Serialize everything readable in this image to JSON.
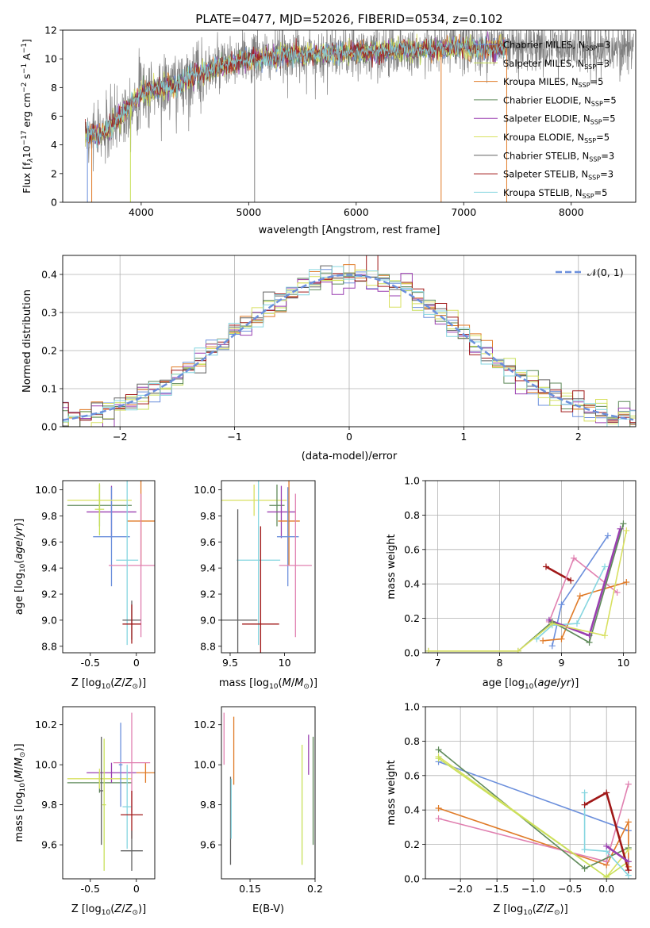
{
  "figure": {
    "title": "PLATE=0477, MJD=52026, FIBERID=0534, z=0.102"
  },
  "colors": {
    "Chabrier MILES": "#6b8fdc",
    "Salpeter MILES": "#c8e05a",
    "Kroupa MILES": "#e07b28",
    "Chabrier ELODIE": "#5f8a5a",
    "Salpeter ELODIE": "#9a3fb0",
    "Kroupa ELODIE": "#d8e060",
    "Chabrier STELIB": "#606060",
    "Salpeter STELIB": "#a01818",
    "Kroupa STELIB": "#86d6e0",
    "Pink": "#e080b0"
  },
  "chart_data": [
    {
      "id": "spectrum",
      "type": "line",
      "xlabel": "wavelength [Angstrom, rest frame]",
      "ylabel": "Flux [f$_\\lambda$10$^{-17}$ erg cm$^{-2}$ s$^{-1}$ A$^{-1}$]",
      "ylabel_parts": [
        "Flux [f",
        "λ",
        "10",
        "−17",
        " erg cm",
        "−2",
        " s",
        "−1",
        " A",
        "−1",
        "]"
      ],
      "xlim": [
        3270,
        8600
      ],
      "ylim": [
        0,
        12
      ],
      "xticks": [
        4000,
        5000,
        6000,
        7000,
        8000
      ],
      "yticks": [
        0,
        2,
        4,
        6,
        8,
        10,
        12
      ],
      "legend_placement": "right",
      "legend": [
        {
          "name": "Chabrier MILES",
          "nssp": "3"
        },
        {
          "name": "Salpeter MILES",
          "nssp": "3"
        },
        {
          "name": "Kroupa MILES",
          "nssp": "5"
        },
        {
          "name": "Chabrier ELODIE",
          "nssp": "5"
        },
        {
          "name": "Salpeter ELODIE",
          "nssp": "5"
        },
        {
          "name": "Kroupa ELODIE",
          "nssp": "5"
        },
        {
          "name": "Chabrier STELIB",
          "nssp": "3"
        },
        {
          "name": "Salpeter STELIB",
          "nssp": "3"
        },
        {
          "name": "Kroupa STELIB",
          "nssp": "5"
        }
      ],
      "nssp_label": "N",
      "nssp_sub": "SSP",
      "continuum": [
        [
          3480,
          4.8
        ],
        [
          3600,
          4.6
        ],
        [
          3700,
          5.1
        ],
        [
          3800,
          6.0
        ],
        [
          3900,
          6.8
        ],
        [
          4000,
          7.6
        ],
        [
          4100,
          7.8
        ],
        [
          4200,
          8.0
        ],
        [
          4300,
          8.1
        ],
        [
          4400,
          8.5
        ],
        [
          4500,
          8.9
        ],
        [
          4600,
          9.1
        ],
        [
          4700,
          9.4
        ],
        [
          4800,
          9.6
        ],
        [
          4900,
          9.8
        ],
        [
          5000,
          10.0
        ],
        [
          5200,
          10.1
        ],
        [
          5400,
          10.3
        ],
        [
          5600,
          10.3
        ],
        [
          5800,
          10.4
        ],
        [
          6000,
          10.4
        ],
        [
          6200,
          10.5
        ],
        [
          6400,
          10.6
        ],
        [
          6600,
          10.6
        ],
        [
          6800,
          10.7
        ],
        [
          7000,
          10.8
        ],
        [
          7200,
          10.7
        ],
        [
          7400,
          10.8
        ]
      ],
      "model_visible_range": [
        3480,
        7400
      ],
      "data_range": [
        3480,
        8580
      ],
      "data_scatter_level": 1.0,
      "sharp_dips_x": [
        3500,
        3540,
        3900,
        5055,
        6790,
        7400
      ]
    },
    {
      "id": "residuals",
      "type": "histogram",
      "xlabel": "(data-model)/error",
      "ylabel": "Normed distribution",
      "xlim": [
        -2.5,
        2.5
      ],
      "ylim": [
        0,
        0.45
      ],
      "xticks": [
        -2,
        -1,
        0,
        1,
        2
      ],
      "yticks": [
        0.0,
        0.1,
        0.2,
        0.3,
        0.4
      ],
      "grid": true,
      "legend_placement": "top-right",
      "legend": [
        {
          "name": "𝒩(0, 1)",
          "style": "dashed"
        }
      ],
      "bin_width": 0.1
    },
    {
      "id": "age-vs-Z",
      "type": "scatter",
      "xlabel": "Z [log10(Z/Z⊙)]",
      "ylabel": "age  [log10(age/yr)]",
      "xlim": [
        -0.8,
        0.2
      ],
      "ylim": [
        8.75,
        10.07
      ],
      "xticks": [
        -0.5,
        0.0
      ],
      "yticks": [
        8.8,
        9.0,
        9.2,
        9.4,
        9.6,
        9.8,
        10.0
      ],
      "errorbars": [
        {
          "series": "Chabrier ELODIE",
          "x": -0.4,
          "xerr": 0.35,
          "y": 9.88,
          "yerr": 0.16
        },
        {
          "series": "Salpeter ELODIE",
          "x": -0.27,
          "xerr": 0.27,
          "y": 9.83,
          "yerr": 0.2
        },
        {
          "series": "Chabrier MILES",
          "x": -0.27,
          "xerr": 0.2,
          "y": 9.64,
          "yerr": 0.38
        },
        {
          "series": "Kroupa ELODIE",
          "x": -0.4,
          "xerr": 0.35,
          "y": 9.92,
          "yerr": 0.12
        },
        {
          "series": "Kroupa MILES",
          "x": 0.05,
          "xerr": 0.15,
          "y": 9.76,
          "yerr": 0.34
        },
        {
          "series": "Pink",
          "x": 0.05,
          "xerr": 0.35,
          "y": 9.42,
          "yerr": 0.55
        },
        {
          "series": "Kroupa STELIB",
          "x": -0.1,
          "xerr": 0.12,
          "y": 9.46,
          "yerr": 0.65
        },
        {
          "series": "Chabrier STELIB",
          "x": -0.05,
          "xerr": 0.1,
          "y": 9.0,
          "yerr": 0.15
        },
        {
          "series": "Salpeter STELIB",
          "x": -0.05,
          "xerr": 0.1,
          "y": 8.97,
          "yerr": 0.15
        },
        {
          "series": "Salpeter MILES",
          "x": -0.4,
          "xerr": 0.05,
          "y": 9.85,
          "yerr": 0.2
        }
      ]
    },
    {
      "id": "age-vs-mass",
      "type": "scatter",
      "xlabel": "mass [log10(M/M⊙)]",
      "xlim": [
        9.42,
        10.28
      ],
      "ylim": [
        8.75,
        10.07
      ],
      "xticks": [
        9.5,
        10.0
      ],
      "yticks": [
        8.8,
        9.0,
        9.2,
        9.4,
        9.6,
        9.8,
        10.0
      ],
      "errorbars": [
        {
          "series": "Kroupa ELODIE",
          "x": 9.72,
          "xerr": 0.3,
          "y": 9.92,
          "yerr": 0.12
        },
        {
          "series": "Chabrier ELODIE",
          "x": 9.93,
          "xerr": 0.07,
          "y": 9.88,
          "yerr": 0.16
        },
        {
          "series": "Salpeter ELODIE",
          "x": 9.97,
          "xerr": 0.13,
          "y": 9.83,
          "yerr": 0.2
        },
        {
          "series": "Kroupa MILES",
          "x": 10.04,
          "xerr": 0.1,
          "y": 9.76,
          "yerr": 0.34
        },
        {
          "series": "Chabrier MILES",
          "x": 10.03,
          "xerr": 0.1,
          "y": 9.64,
          "yerr": 0.38
        },
        {
          "series": "Pink",
          "x": 10.1,
          "xerr": 0.15,
          "y": 9.42,
          "yerr": 0.55
        },
        {
          "series": "Kroupa STELIB",
          "x": 9.76,
          "xerr": 0.2,
          "y": 9.46,
          "yerr": 0.65
        },
        {
          "series": "Chabrier STELIB",
          "x": 9.57,
          "xerr": 0.18,
          "y": 9.0,
          "yerr": 0.85
        },
        {
          "series": "Salpeter STELIB",
          "x": 9.78,
          "xerr": 0.17,
          "y": 8.97,
          "yerr": 0.75
        }
      ]
    },
    {
      "id": "mass-weight-vs-age",
      "type": "line",
      "xlabel": "age  [log10(age/yr)]",
      "ylabel": "mass weight",
      "xlim": [
        6.8,
        10.2
      ],
      "ylim": [
        0.0,
        1.0
      ],
      "xticks": [
        7,
        8,
        9,
        10
      ],
      "yticks": [
        0.0,
        0.2,
        0.4,
        0.6,
        0.8,
        1.0
      ],
      "grid": true,
      "series": [
        {
          "name": "Chabrier MILES",
          "x": [
            8.85,
            9.0,
            9.75
          ],
          "y": [
            0.04,
            0.28,
            0.68
          ]
        },
        {
          "name": "Salpeter STELIB",
          "x": [
            8.75,
            9.15
          ],
          "y": [
            0.5,
            0.42
          ]
        },
        {
          "name": "Pink",
          "x": [
            8.8,
            9.2,
            9.9
          ],
          "y": [
            0.18,
            0.55,
            0.35
          ]
        },
        {
          "name": "Kroupa MILES",
          "x": [
            8.7,
            9.0,
            9.3,
            10.05
          ],
          "y": [
            0.07,
            0.08,
            0.33,
            0.41
          ]
        },
        {
          "name": "Kroupa STELIB",
          "x": [
            8.6,
            8.85,
            9.25,
            9.7
          ],
          "y": [
            0.08,
            0.16,
            0.17,
            0.5
          ]
        },
        {
          "name": "Salpeter ELODIE",
          "x": [
            8.8,
            9.45,
            9.95
          ],
          "y": [
            0.19,
            0.1,
            0.72
          ]
        },
        {
          "name": "Chabrier ELODIE",
          "x": [
            6.85,
            8.3,
            8.85,
            9.45,
            10.0
          ],
          "y": [
            0.01,
            0.01,
            0.18,
            0.06,
            0.75
          ]
        },
        {
          "name": "Kroupa ELODIE",
          "x": [
            6.85,
            8.3,
            8.85,
            9.7,
            10.05
          ],
          "y": [
            0.01,
            0.01,
            0.17,
            0.1,
            0.71
          ]
        }
      ]
    },
    {
      "id": "mass-vs-Z",
      "type": "scatter",
      "xlabel": "Z [log10(Z/Z⊙)]",
      "ylabel": "mass [log10(M/M⊙)]",
      "xlim": [
        -0.8,
        0.2
      ],
      "ylim": [
        9.43,
        10.29
      ],
      "xticks": [
        -0.5,
        0.0
      ],
      "yticks": [
        9.6,
        9.8,
        10.0,
        10.2
      ],
      "errorbars": [
        {
          "series": "Chabrier ELODIE",
          "x": -0.4,
          "xerr": 0.35,
          "y": 9.91,
          "yerr": 0.05
        },
        {
          "series": "Salpeter ELODIE",
          "x": -0.27,
          "xerr": 0.27,
          "y": 9.96,
          "yerr": 0.05
        },
        {
          "series": "Kroupa ELODIE",
          "x": -0.4,
          "xerr": 0.35,
          "y": 9.93,
          "yerr": 0.05
        },
        {
          "series": "Chabrier STELIB",
          "x": -0.38,
          "xerr": 0.02,
          "y": 9.87,
          "yerr": 0.27
        },
        {
          "series": "Salpeter MILES",
          "x": -0.35,
          "xerr": 0.02,
          "y": 9.8,
          "yerr": 0.33
        },
        {
          "series": "Chabrier MILES",
          "x": -0.17,
          "xerr": 0.02,
          "y": 10.0,
          "yerr": 0.21
        },
        {
          "series": "Kroupa MILES",
          "x": 0.1,
          "xerr": 0.1,
          "y": 9.96,
          "yerr": 0.05
        },
        {
          "series": "Pink",
          "x": -0.05,
          "xerr": 0.2,
          "y": 10.01,
          "yerr": 0.25
        },
        {
          "series": "Kroupa STELIB",
          "x": -0.1,
          "xerr": 0.05,
          "y": 9.79,
          "yerr": 0.21
        },
        {
          "series": "Salpeter STELIB",
          "x": -0.05,
          "xerr": 0.12,
          "y": 9.75,
          "yerr": 0.12
        },
        {
          "series": "Chabrier STELIB",
          "x": -0.05,
          "xerr": 0.12,
          "y": 9.57,
          "yerr": 0.1
        }
      ]
    },
    {
      "id": "ebv",
      "type": "scatter",
      "xlabel": "E(B-V)",
      "xlim": [
        0.128,
        0.2
      ],
      "ylim": [
        9.43,
        10.29
      ],
      "xticks": [
        0.15,
        0.2
      ],
      "yticks": [
        9.6,
        9.8,
        10.0,
        10.2
      ],
      "errorbars": [
        {
          "series": "Pink",
          "x": 0.13,
          "y": 10.13,
          "yerr": 0.13
        },
        {
          "series": "Chabrier STELIB",
          "x": 0.135,
          "y": 9.72,
          "yerr": 0.22
        },
        {
          "series": "Kroupa STELIB",
          "x": 0.1355,
          "y": 9.78,
          "yerr": 0.15
        },
        {
          "series": "Kroupa MILES",
          "x": 0.1375,
          "y": 10.07,
          "yerr": 0.17
        },
        {
          "series": "Salpeter ELODIE",
          "x": 0.195,
          "y": 10.05,
          "yerr": 0.1
        },
        {
          "series": "Salpeter MILES",
          "x": 0.19,
          "y": 9.8,
          "yerr": 0.3
        },
        {
          "series": "Chabrier ELODIE",
          "x": 0.1985,
          "y": 9.87,
          "yerr": 0.27
        }
      ]
    },
    {
      "id": "mass-weight-vs-Z",
      "type": "line",
      "xlabel": "Z [log10(Z/Z⊙)]",
      "ylabel": "mass weight",
      "xlim": [
        -2.48,
        0.4
      ],
      "ylim": [
        0.0,
        1.0
      ],
      "xticks": [
        -2.0,
        -1.5,
        -1.0,
        -0.5,
        0.0
      ],
      "xtick_labels": [
        "−2.0",
        "−1.5",
        "−1.0",
        "−0.5",
        "0.0"
      ],
      "yticks": [
        0.0,
        0.2,
        0.4,
        0.6,
        0.8,
        1.0
      ],
      "grid": true,
      "series": [
        {
          "name": "Chabrier MILES",
          "x": [
            -2.3,
            0.3
          ],
          "y": [
            0.68,
            0.28
          ]
        },
        {
          "name": "Kroupa MILES",
          "x": [
            -2.3,
            0.0,
            0.3,
            0.3
          ],
          "y": [
            0.41,
            0.08,
            0.33,
            0.07
          ]
        },
        {
          "name": "Pink",
          "x": [
            -2.3,
            0.0,
            0.3
          ],
          "y": [
            0.35,
            0.1,
            0.55
          ]
        },
        {
          "name": "Chabrier ELODIE",
          "x": [
            -2.3,
            -0.3,
            0.3
          ],
          "y": [
            0.75,
            0.06,
            0.18
          ]
        },
        {
          "name": "Kroupa ELODIE",
          "x": [
            -2.3,
            0.0,
            0.3
          ],
          "y": [
            0.71,
            0.01,
            0.17
          ]
        },
        {
          "name": "Salpeter MILES",
          "x": [
            -2.3,
            0.0,
            0.3
          ],
          "y": [
            0.7,
            0.01,
            0.1
          ]
        },
        {
          "name": "Kroupa STELIB",
          "x": [
            -0.3,
            -0.3,
            0.0,
            0.3
          ],
          "y": [
            0.5,
            0.17,
            0.16,
            0.02
          ]
        },
        {
          "name": "Salpeter STELIB",
          "x": [
            -0.3,
            0.0,
            0.3
          ],
          "y": [
            0.43,
            0.5,
            0.05
          ]
        },
        {
          "name": "Salpeter ELODIE",
          "x": [
            0.0,
            0.3
          ],
          "y": [
            0.19,
            0.1
          ]
        }
      ]
    }
  ]
}
